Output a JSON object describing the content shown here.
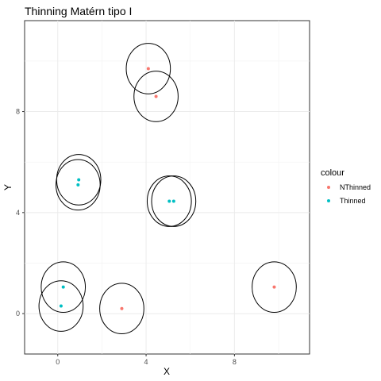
{
  "chart_data": {
    "type": "scatter",
    "title": "Thinning Matérn tipo I",
    "xlabel": "X",
    "ylabel": "Y",
    "xlim": [
      -1.5,
      11.4
    ],
    "ylim": [
      -1.6,
      11.6
    ],
    "xticks": [
      0,
      4,
      8
    ],
    "yticks": [
      0,
      4,
      8
    ],
    "grid": true,
    "legend": {
      "title": "colour",
      "placement": "right",
      "entries": [
        {
          "label": "NThinned",
          "color": "#F8766D"
        },
        {
          "label": "Thinned",
          "color": "#00BFC4"
        }
      ]
    },
    "circle_radius": 1.0,
    "series": [
      {
        "name": "NThinned",
        "color": "#F8766D",
        "points": [
          {
            "x": 4.1,
            "y": 9.7
          },
          {
            "x": 4.45,
            "y": 8.6
          },
          {
            "x": 2.9,
            "y": 0.2
          },
          {
            "x": 9.8,
            "y": 1.05
          }
        ]
      },
      {
        "name": "Thinned",
        "color": "#00BFC4",
        "points": [
          {
            "x": 0.95,
            "y": 5.3
          },
          {
            "x": 0.92,
            "y": 5.1
          },
          {
            "x": 5.05,
            "y": 4.45
          },
          {
            "x": 5.25,
            "y": 4.45
          },
          {
            "x": 0.25,
            "y": 1.05
          },
          {
            "x": 0.15,
            "y": 0.3
          }
        ]
      }
    ]
  }
}
